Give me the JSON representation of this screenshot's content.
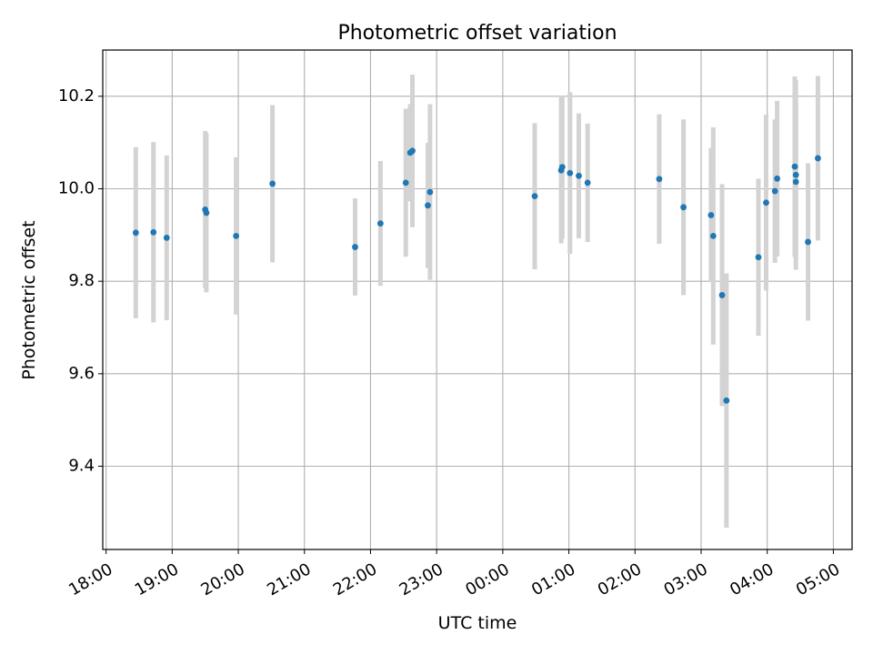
{
  "chart_data": {
    "type": "scatter",
    "title": "Photometric offset variation",
    "xlabel": "UTC time",
    "ylabel": "Photometric offset",
    "x_ticks": [
      "18:00",
      "19:00",
      "20:00",
      "21:00",
      "22:00",
      "23:00",
      "00:00",
      "01:00",
      "02:00",
      "03:00",
      "04:00",
      "05:00"
    ],
    "y_ticks": [
      "9.4",
      "9.6",
      "9.8",
      "10.0",
      "10.2"
    ],
    "xlim": [
      "17:57",
      "05:17"
    ],
    "ylim": [
      9.22,
      10.3
    ],
    "grid": true,
    "colors": {
      "marker": "#1f77b4",
      "errorbar": "#d3d3d3"
    },
    "points": [
      {
        "time": "18:27",
        "y": 9.905,
        "err": 0.185
      },
      {
        "time": "18:43",
        "y": 9.906,
        "err": 0.195
      },
      {
        "time": "18:55",
        "y": 9.894,
        "err": 0.178
      },
      {
        "time": "19:30",
        "y": 9.955,
        "err": 0.17
      },
      {
        "time": "19:31",
        "y": 9.948,
        "err": 0.172
      },
      {
        "time": "19:58",
        "y": 9.898,
        "err": 0.17
      },
      {
        "time": "20:31",
        "y": 10.011,
        "err": 0.17
      },
      {
        "time": "21:46",
        "y": 9.874,
        "err": 0.105
      },
      {
        "time": "22:09",
        "y": 9.925,
        "err": 0.135
      },
      {
        "time": "22:32",
        "y": 10.013,
        "err": 0.16
      },
      {
        "time": "22:36",
        "y": 10.078,
        "err": 0.105
      },
      {
        "time": "22:38",
        "y": 10.082,
        "err": 0.165
      },
      {
        "time": "22:52",
        "y": 9.964,
        "err": 0.135
      },
      {
        "time": "22:54",
        "y": 9.993,
        "err": 0.19
      },
      {
        "time": "00:29",
        "y": 9.984,
        "err": 0.158
      },
      {
        "time": "00:53",
        "y": 10.04,
        "err": 0.158
      },
      {
        "time": "00:54",
        "y": 10.047,
        "err": 0.155
      },
      {
        "time": "01:01",
        "y": 10.034,
        "err": 0.175
      },
      {
        "time": "01:09",
        "y": 10.028,
        "err": 0.135
      },
      {
        "time": "01:17",
        "y": 10.013,
        "err": 0.128
      },
      {
        "time": "02:22",
        "y": 10.021,
        "err": 0.14
      },
      {
        "time": "02:44",
        "y": 9.96,
        "err": 0.19
      },
      {
        "time": "03:09",
        "y": 9.943,
        "err": 0.145
      },
      {
        "time": "03:11",
        "y": 9.898,
        "err": 0.235
      },
      {
        "time": "03:19",
        "y": 9.77,
        "err": 0.24
      },
      {
        "time": "03:23",
        "y": 9.542,
        "err": 0.275
      },
      {
        "time": "03:52",
        "y": 9.852,
        "err": 0.17
      },
      {
        "time": "03:59",
        "y": 9.97,
        "err": 0.19
      },
      {
        "time": "04:07",
        "y": 9.995,
        "err": 0.155
      },
      {
        "time": "04:09",
        "y": 10.022,
        "err": 0.168
      },
      {
        "time": "04:25",
        "y": 10.048,
        "err": 0.195
      },
      {
        "time": "04:26",
        "y": 10.03,
        "err": 0.205
      },
      {
        "time": "04:26",
        "y": 10.015,
        "err": 0.17
      },
      {
        "time": "04:37",
        "y": 9.885,
        "err": 0.17
      },
      {
        "time": "04:46",
        "y": 10.066,
        "err": 0.178
      }
    ]
  }
}
